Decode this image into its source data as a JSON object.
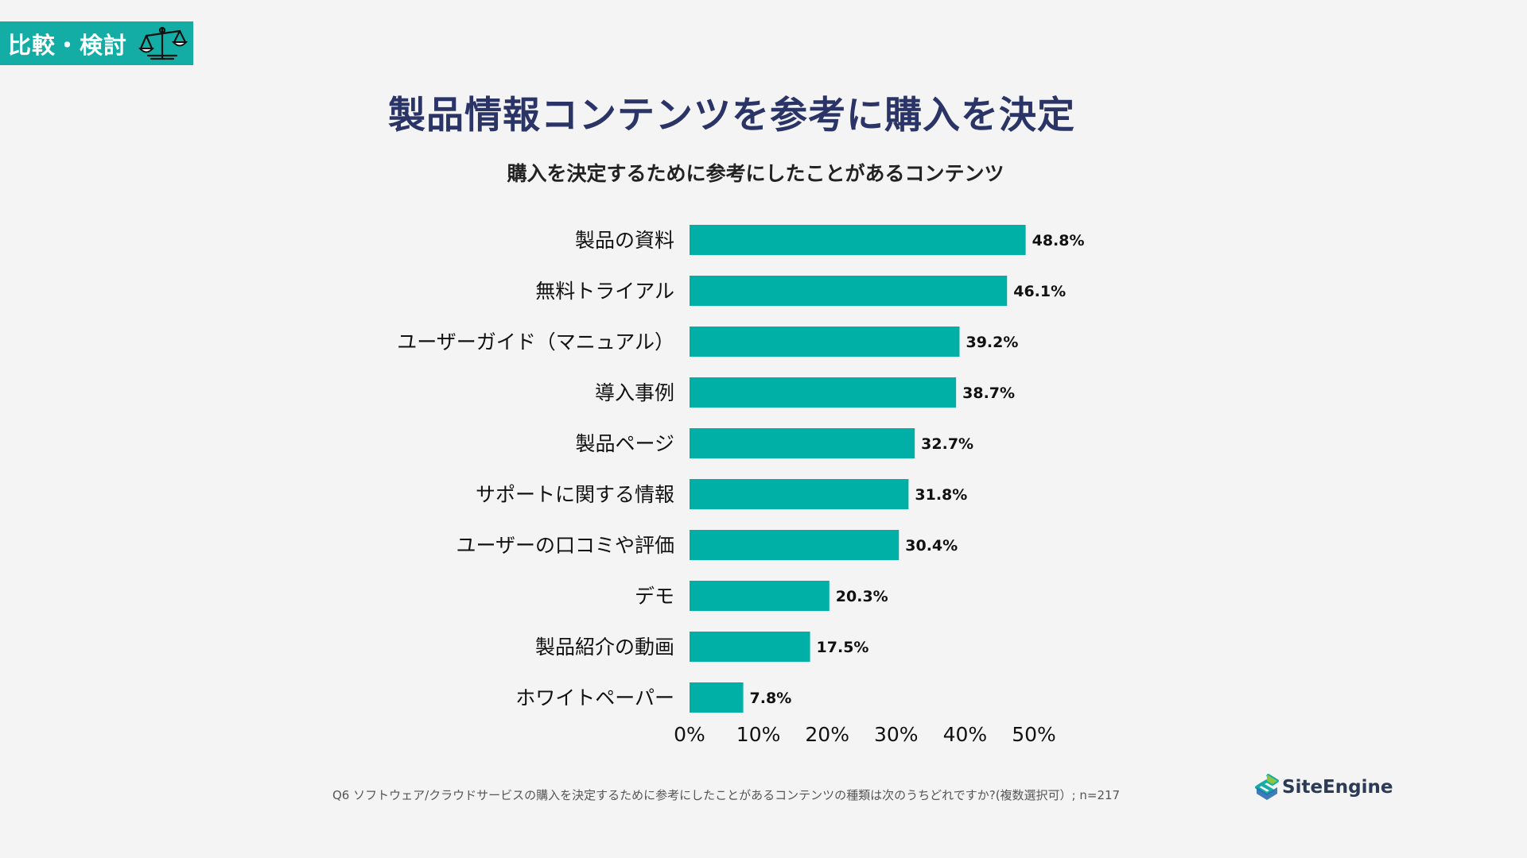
{
  "badge": {
    "label": "比較・検討",
    "icon": "balance-scale-icon"
  },
  "title": "製品情報コンテンツを参考に購入を決定",
  "footnote": "Q6 ソフトウェア/クラウドサービスの購入を決定するために参考にしたことがあるコンテンツの種類は次のうちどれですか?(複数選択可）; n=217",
  "logo": {
    "text": "SiteEngine",
    "icon": "siteengine-logo-icon"
  },
  "colors": {
    "accent": "#14ada6",
    "bar": "#00b0a7",
    "title": "#2b3467",
    "background": "#f4f4f4"
  },
  "chart_data": {
    "type": "bar",
    "orientation": "horizontal",
    "title": "購入を決定するために参考にしたことがあるコンテンツ",
    "categories": [
      "製品の資料",
      "無料トライアル",
      "ユーザーガイド（マニュアル）",
      "導入事例",
      "製品ページ",
      "サポートに関する情報",
      "ユーザーの口コミや評価",
      "デモ",
      "製品紹介の動画",
      "ホワイトペーパー"
    ],
    "values": [
      48.8,
      46.1,
      39.2,
      38.7,
      32.7,
      31.8,
      30.4,
      20.3,
      17.5,
      7.8
    ],
    "value_labels": [
      "48.8%",
      "46.1%",
      "39.2%",
      "38.7%",
      "32.7%",
      "31.8%",
      "30.4%",
      "20.3%",
      "17.5%",
      "7.8%"
    ],
    "xlim": [
      0,
      50
    ],
    "xticks": [
      0,
      10,
      20,
      30,
      40,
      50
    ],
    "xtick_labels": [
      "0%",
      "10%",
      "20%",
      "30%",
      "40%",
      "50%"
    ],
    "xlabel": "",
    "ylabel": "",
    "grid": false,
    "legend": false
  }
}
